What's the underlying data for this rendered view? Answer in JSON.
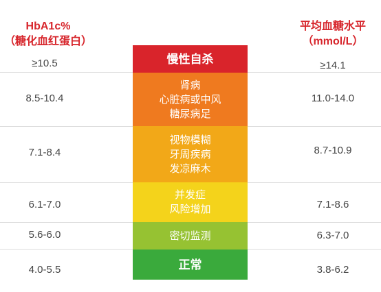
{
  "header": {
    "left_line1": "HbA1c%",
    "left_line2": "（糖化血红蛋白）",
    "right_line1": "平均血糖水平",
    "right_line2": "（mmol/L）"
  },
  "rows": [
    {
      "hba1c": "≥10.5",
      "glucose": "≥14.1",
      "lines": [
        "慢性自杀"
      ],
      "color": "#d9242b"
    },
    {
      "hba1c": "8.5-10.4",
      "glucose": "11.0-14.0",
      "lines": [
        "肾病",
        "心脏病或中风",
        "糖尿病足"
      ],
      "color": "#ef7a1f"
    },
    {
      "hba1c": "7.1-8.4",
      "glucose": "8.7-10.9",
      "lines": [
        "视物模糊",
        "牙周疾病",
        "发凉麻木"
      ],
      "color": "#f2a818"
    },
    {
      "hba1c": "6.1-7.0",
      "glucose": "7.1-8.6",
      "lines": [
        "并发症",
        "风险增加"
      ],
      "color": "#f4d31b"
    },
    {
      "hba1c": "5.6-6.0",
      "glucose": "6.3-7.0",
      "lines": [
        "密切监测"
      ],
      "color": "#96c232"
    },
    {
      "hba1c": "4.0-5.5",
      "glucose": "3.8-6.2",
      "lines": [
        "正常"
      ],
      "color": "#3aaa3c"
    }
  ]
}
